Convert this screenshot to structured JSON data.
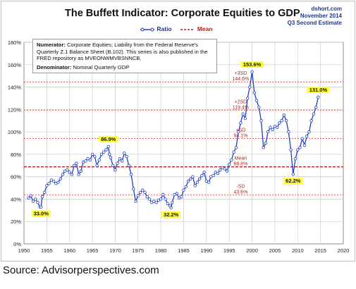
{
  "title": "The Buffett Indicator: Corporate Equities to GDP",
  "credit": {
    "site": "dshort.com",
    "date": "November 2014",
    "estimate": "Q3 Second Estimate"
  },
  "legend": {
    "ratio_label": "Ratio",
    "mean_label": "Mean"
  },
  "note": {
    "numerator_label": "Numerator:",
    "numerator_text": "Corporate Equities; Liability from the Federal Reserve's Quarterly Z.1 Balance Sheet (B.102). This series is also published in the FRED repository as MVEONWMVBSNNCB.",
    "denominator_label": "Denominator:",
    "denominator_text": "Nominal Quarterly GDP"
  },
  "source_caption": "Source: Advisorperspectives.com",
  "colors": {
    "ratio_line": "#1f3fbf",
    "mean_line": "#b22222",
    "sd_line": "#d9534f",
    "callout_bg": "#ffff33"
  },
  "chart_data": {
    "type": "line",
    "x_ticks": [
      1950,
      1955,
      1960,
      1965,
      1970,
      1975,
      1980,
      1985,
      1990,
      1995,
      2000,
      2005,
      2010,
      2015,
      2020
    ],
    "y_ticks": [
      "0%",
      "20%",
      "40%",
      "60%",
      "80%",
      "100%",
      "120%",
      "140%",
      "160%",
      "180%"
    ],
    "xlim": [
      1950,
      2020
    ],
    "ylim": [
      0,
      180
    ],
    "grid": true,
    "legend_position": "top-center",
    "series": [
      {
        "name": "Ratio",
        "x": [
          1951.0,
          1951.5,
          1952.0,
          1952.5,
          1953.0,
          1953.5,
          1953.75,
          1954.0,
          1954.5,
          1955.0,
          1955.5,
          1956.0,
          1956.5,
          1957.0,
          1957.5,
          1958.0,
          1958.5,
          1959.0,
          1959.5,
          1960.0,
          1960.5,
          1961.0,
          1961.5,
          1962.0,
          1962.5,
          1963.0,
          1963.5,
          1964.0,
          1964.5,
          1965.0,
          1965.5,
          1966.0,
          1966.5,
          1967.0,
          1967.5,
          1968.0,
          1968.5,
          1968.75,
          1969.0,
          1969.5,
          1970.0,
          1970.5,
          1971.0,
          1971.5,
          1972.0,
          1972.5,
          1973.0,
          1973.5,
          1974.0,
          1974.5,
          1975.0,
          1975.5,
          1976.0,
          1976.5,
          1977.0,
          1977.5,
          1978.0,
          1978.5,
          1979.0,
          1979.5,
          1980.0,
          1980.5,
          1981.0,
          1981.5,
          1982.0,
          1982.25,
          1982.5,
          1983.0,
          1983.5,
          1984.0,
          1984.5,
          1985.0,
          1985.5,
          1986.0,
          1986.5,
          1987.0,
          1987.5,
          1988.0,
          1988.5,
          1989.0,
          1989.5,
          1990.0,
          1990.5,
          1991.0,
          1991.5,
          1992.0,
          1992.5,
          1993.0,
          1993.5,
          1994.0,
          1994.5,
          1995.0,
          1995.5,
          1996.0,
          1996.5,
          1997.0,
          1997.5,
          1998.0,
          1998.5,
          1999.0,
          1999.5,
          2000.0,
          2000.5,
          2001.0,
          2001.5,
          2002.0,
          2002.5,
          2003.0,
          2003.5,
          2004.0,
          2004.5,
          2005.0,
          2005.5,
          2006.0,
          2006.5,
          2007.0,
          2007.5,
          2008.0,
          2008.5,
          2009.0,
          2009.5,
          2010.0,
          2010.5,
          2011.0,
          2011.5,
          2012.0,
          2012.5,
          2013.0,
          2013.5,
          2014.0,
          2014.5
        ],
        "values": [
          41,
          43,
          38,
          40,
          37,
          33,
          33,
          42,
          46,
          52,
          54,
          57,
          56,
          54,
          55,
          58,
          62,
          65,
          66,
          64,
          62,
          70,
          72,
          62,
          65,
          73,
          74,
          76,
          75,
          80,
          78,
          70,
          75,
          80,
          82,
          84,
          86.9,
          80,
          77,
          70,
          66,
          72,
          76,
          74,
          81,
          78,
          70,
          62,
          49,
          38,
          43,
          46,
          48,
          46,
          42,
          40,
          37,
          38,
          37,
          39,
          40,
          44,
          40,
          36,
          34,
          32.2,
          37,
          44,
          45,
          41,
          42,
          48,
          51,
          56,
          58,
          60,
          52,
          55,
          58,
          61,
          64,
          56,
          55,
          60,
          61,
          64,
          63,
          66,
          68,
          67,
          65,
          71,
          75,
          82,
          86,
          100,
          108,
          116,
          112,
          130,
          140,
          153.6,
          135,
          128,
          122,
          110,
          86,
          90,
          100,
          104,
          102,
          105,
          104,
          108,
          110,
          115,
          110,
          100,
          84,
          62.2,
          76,
          84,
          86,
          94,
          88,
          96,
          100,
          110,
          116,
          122,
          131
        ]
      },
      {
        "name": "Mean",
        "value": 68.8
      }
    ],
    "reference_lines": [
      {
        "label": "+3SD",
        "value_text": "144.6%",
        "value": 144.6
      },
      {
        "label": "+2SD",
        "value_text": "119.4%",
        "value": 119.4
      },
      {
        "label": "+SD",
        "value_text": "94.1%",
        "value": 94.1
      },
      {
        "label": "Mean",
        "value_text": "68.8%",
        "value": 68.8
      },
      {
        "label": "-SD",
        "value_text": "43.6%",
        "value": 43.6
      }
    ],
    "callouts": [
      {
        "text": "33.0%",
        "x": 1953.75,
        "value": 33.0,
        "place": "below"
      },
      {
        "text": "86.9%",
        "x": 1968.5,
        "value": 86.9,
        "place": "above"
      },
      {
        "text": "32.2%",
        "x": 1982.25,
        "value": 32.2,
        "place": "below"
      },
      {
        "text": "153.6%",
        "x": 2000.0,
        "value": 153.6,
        "place": "above"
      },
      {
        "text": "62.2%",
        "x": 2009.0,
        "value": 62.2,
        "place": "below"
      },
      {
        "text": "131.0%",
        "x": 2014.5,
        "value": 131.0,
        "place": "above"
      }
    ]
  }
}
